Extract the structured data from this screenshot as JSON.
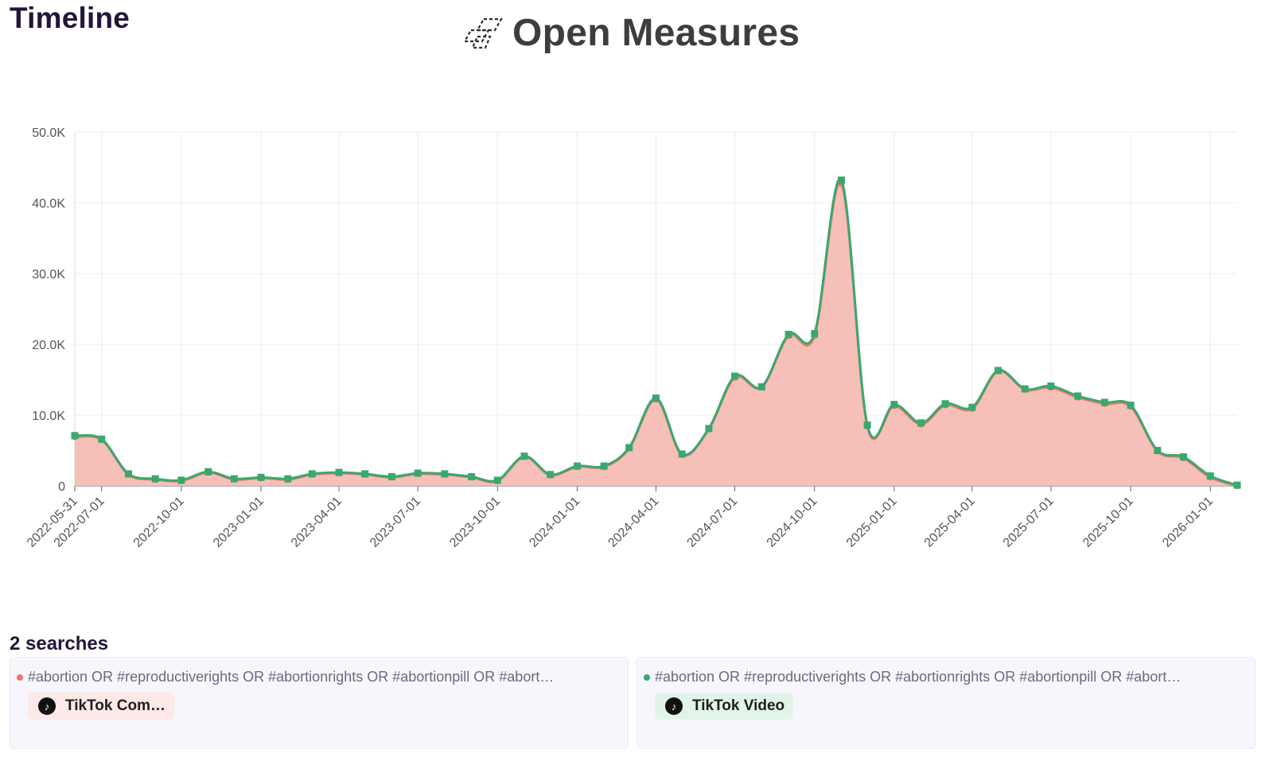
{
  "header": {
    "title": "Timeline",
    "brand_name": "Open Measures"
  },
  "colors": {
    "series_1": "#f0766a",
    "series_1_fill": "#f5bcb4",
    "series_2": "#3aa86e",
    "chip_1_bg": "#fde9e7",
    "chip_2_bg": "#e2f4e8"
  },
  "chart_data": {
    "type": "area",
    "title": "",
    "xlabel": "",
    "ylabel": "",
    "ylim": [
      0,
      50000
    ],
    "y_ticks": [
      0,
      10000,
      20000,
      30000,
      40000,
      50000
    ],
    "y_tick_labels": [
      "0",
      "10.0K",
      "20.0K",
      "30.0K",
      "40.0K",
      "50.0K"
    ],
    "x_tick_labels": [
      "2022-05-31",
      "2022-07-01",
      "2022-10-01",
      "2023-01-01",
      "2023-04-01",
      "2023-07-01",
      "2023-10-01",
      "2024-01-01",
      "2024-04-01",
      "2024-07-01",
      "2024-10-01",
      "2025-01-01",
      "2025-04-01",
      "2025-07-01",
      "2025-10-01",
      "2026-01-01"
    ],
    "x_range": [
      "2022-05-31",
      "2026-02-01"
    ],
    "grid": true,
    "series": [
      {
        "name": "TikTok Comment",
        "color_key": "series_1",
        "filled": true,
        "points": [
          [
            "2022-05-31",
            6900
          ],
          [
            "2022-07-01",
            6500
          ],
          [
            "2022-08-01",
            1600
          ],
          [
            "2022-09-01",
            900
          ],
          [
            "2022-10-01",
            700
          ],
          [
            "2022-11-01",
            1900
          ],
          [
            "2022-12-01",
            900
          ],
          [
            "2023-01-01",
            1100
          ],
          [
            "2023-02-01",
            900
          ],
          [
            "2023-03-01",
            1600
          ],
          [
            "2023-04-01",
            1800
          ],
          [
            "2023-05-01",
            1600
          ],
          [
            "2023-06-01",
            1200
          ],
          [
            "2023-07-01",
            1700
          ],
          [
            "2023-08-01",
            1600
          ],
          [
            "2023-09-01",
            1200
          ],
          [
            "2023-10-01",
            700
          ],
          [
            "2023-11-01",
            4100
          ],
          [
            "2023-12-01",
            1500
          ],
          [
            "2024-01-01",
            2700
          ],
          [
            "2024-02-01",
            2700
          ],
          [
            "2024-03-01",
            5300
          ],
          [
            "2024-04-01",
            12200
          ],
          [
            "2024-05-01",
            4400
          ],
          [
            "2024-06-01",
            8000
          ],
          [
            "2024-07-01",
            15300
          ],
          [
            "2024-08-01",
            13900
          ],
          [
            "2024-09-01",
            21200
          ],
          [
            "2024-10-01",
            21200
          ],
          [
            "2024-11-01",
            42700
          ],
          [
            "2024-12-01",
            8400
          ],
          [
            "2025-01-01",
            11300
          ],
          [
            "2025-02-01",
            8700
          ],
          [
            "2025-03-01",
            11400
          ],
          [
            "2025-04-01",
            10900
          ],
          [
            "2025-05-01",
            16200
          ],
          [
            "2025-06-01",
            13600
          ],
          [
            "2025-07-01",
            13900
          ],
          [
            "2025-08-01",
            12500
          ],
          [
            "2025-09-01",
            11600
          ],
          [
            "2025-10-01",
            11200
          ],
          [
            "2025-11-01",
            4900
          ],
          [
            "2025-12-01",
            3900
          ],
          [
            "2026-01-01",
            1200
          ],
          [
            "2026-02-01",
            0
          ]
        ]
      },
      {
        "name": "TikTok Video",
        "color_key": "series_2",
        "filled": false,
        "points": [
          [
            "2022-05-31",
            7100
          ],
          [
            "2022-07-01",
            6600
          ],
          [
            "2022-08-01",
            1700
          ],
          [
            "2022-09-01",
            1000
          ],
          [
            "2022-10-01",
            800
          ],
          [
            "2022-11-01",
            2000
          ],
          [
            "2022-12-01",
            1000
          ],
          [
            "2023-01-01",
            1200
          ],
          [
            "2023-02-01",
            1000
          ],
          [
            "2023-03-01",
            1700
          ],
          [
            "2023-04-01",
            1900
          ],
          [
            "2023-05-01",
            1700
          ],
          [
            "2023-06-01",
            1300
          ],
          [
            "2023-07-01",
            1800
          ],
          [
            "2023-08-01",
            1700
          ],
          [
            "2023-09-01",
            1300
          ],
          [
            "2023-10-01",
            800
          ],
          [
            "2023-11-01",
            4200
          ],
          [
            "2023-12-01",
            1600
          ],
          [
            "2024-01-01",
            2800
          ],
          [
            "2024-02-01",
            2800
          ],
          [
            "2024-03-01",
            5400
          ],
          [
            "2024-04-01",
            12400
          ],
          [
            "2024-05-01",
            4500
          ],
          [
            "2024-06-01",
            8100
          ],
          [
            "2024-07-01",
            15500
          ],
          [
            "2024-08-01",
            14000
          ],
          [
            "2024-09-01",
            21400
          ],
          [
            "2024-10-01",
            21500
          ],
          [
            "2024-11-01",
            43200
          ],
          [
            "2024-12-01",
            8600
          ],
          [
            "2025-01-01",
            11500
          ],
          [
            "2025-02-01",
            8900
          ],
          [
            "2025-03-01",
            11600
          ],
          [
            "2025-04-01",
            11100
          ],
          [
            "2025-05-01",
            16300
          ],
          [
            "2025-06-01",
            13700
          ],
          [
            "2025-07-01",
            14100
          ],
          [
            "2025-08-01",
            12700
          ],
          [
            "2025-09-01",
            11800
          ],
          [
            "2025-10-01",
            11400
          ],
          [
            "2025-11-01",
            5000
          ],
          [
            "2025-12-01",
            4100
          ],
          [
            "2026-01-01",
            1400
          ],
          [
            "2026-02-01",
            100
          ]
        ]
      }
    ]
  },
  "searches": {
    "count_label": "2 searches",
    "items": [
      {
        "query": "#abortion OR #reproductiverights OR #abortionrights OR #abortionpill OR #abort…",
        "chip_label": "TikTok Com…",
        "chip_icon": "tiktok-icon",
        "dot_color_key": "series_1",
        "chip_bg_key": "chip_1_bg"
      },
      {
        "query": "#abortion OR #reproductiverights OR #abortionrights OR #abortionpill OR #abort…",
        "chip_label": "TikTok Video",
        "chip_icon": "tiktok-icon",
        "dot_color_key": "series_2",
        "chip_bg_key": "chip_2_bg"
      }
    ]
  }
}
